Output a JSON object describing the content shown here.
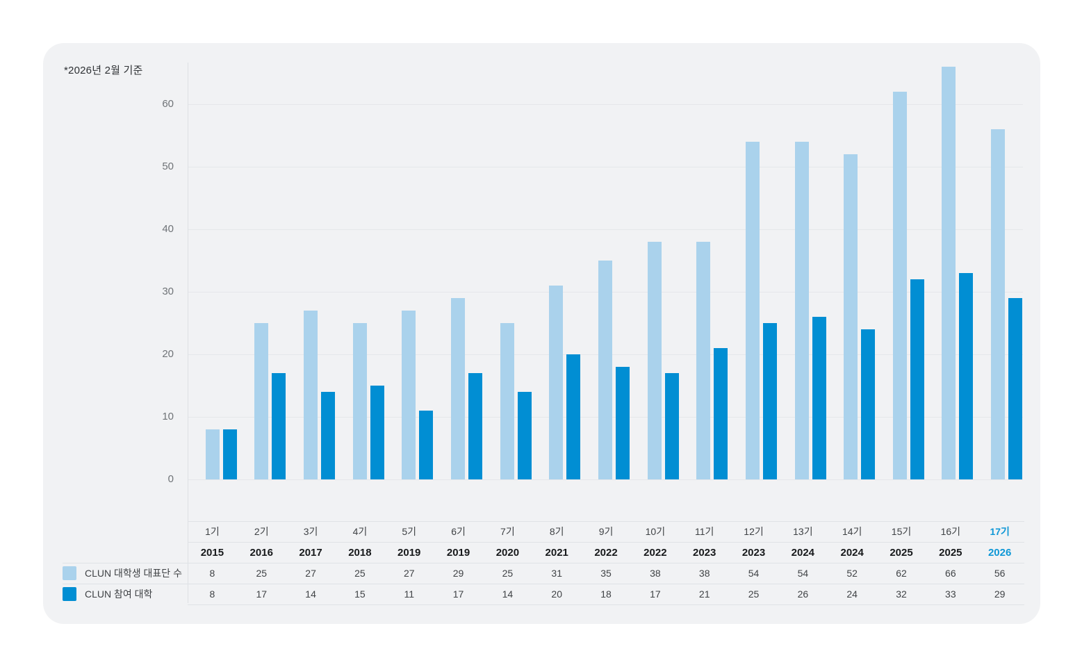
{
  "note": "*2026년 2월 기준",
  "colors": {
    "card_bg": "#F1F2F4",
    "series_light": "#AAD2EC",
    "series_dark": "#018ED3",
    "highlight_text": "#0E97D6",
    "grid_line": "#E5E7EA",
    "axis_text": "#6F7377",
    "table_text": "#3F4245",
    "year_text": "#17191B"
  },
  "chart_data": {
    "type": "bar",
    "title": "",
    "note": "*2026년 2월 기준",
    "categories_generation": [
      "1기",
      "2기",
      "3기",
      "4기",
      "5기",
      "6기",
      "7기",
      "8기",
      "9기",
      "10기",
      "11기",
      "12기",
      "13기",
      "14기",
      "15기",
      "16기",
      "17기"
    ],
    "categories_year": [
      "2015",
      "2016",
      "2017",
      "2018",
      "2019",
      "2019",
      "2020",
      "2021",
      "2022",
      "2022",
      "2023",
      "2023",
      "2024",
      "2024",
      "2025",
      "2025",
      "2026"
    ],
    "series": [
      {
        "name": "CLUN 대학생 대표단 수",
        "color": "#AAD2EC",
        "values": [
          8,
          25,
          27,
          25,
          27,
          29,
          25,
          31,
          35,
          38,
          38,
          54,
          54,
          52,
          62,
          66,
          56
        ]
      },
      {
        "name": "CLUN 참여 대학",
        "color": "#018ED3",
        "values": [
          8,
          17,
          14,
          15,
          11,
          17,
          14,
          20,
          18,
          17,
          21,
          25,
          26,
          24,
          32,
          33,
          29
        ]
      }
    ],
    "y_axis": {
      "min": 0,
      "max": 60,
      "step": 10,
      "ticks": [
        0,
        10,
        20,
        30,
        40,
        50,
        60
      ]
    },
    "highlight_index": 16,
    "grid": true,
    "legend_position": "table-left"
  }
}
